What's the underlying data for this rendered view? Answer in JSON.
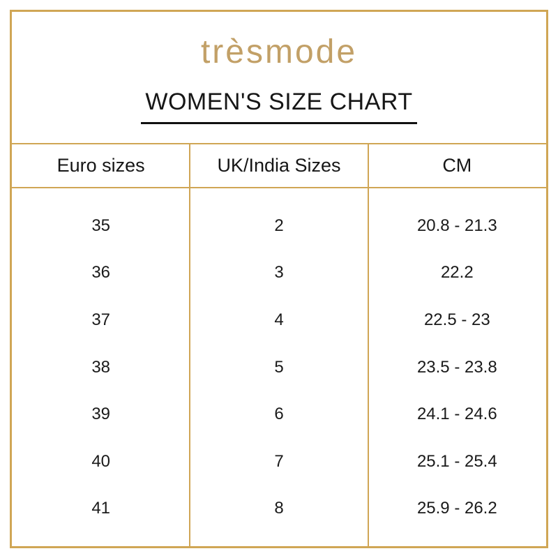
{
  "brand": {
    "logo_text": "trèsmode"
  },
  "title": "WOMEN'S SIZE CHART",
  "colors": {
    "gold_border": "#d0a655",
    "gold_logo": "#c2a067",
    "text": "#1a1a1a"
  },
  "chart_data": {
    "type": "table",
    "title": "WOMEN'S SIZE CHART",
    "columns": [
      "Euro sizes",
      "UK/India Sizes",
      "CM"
    ],
    "rows": [
      [
        "35",
        "2",
        "20.8 - 21.3"
      ],
      [
        "36",
        "3",
        "22.2"
      ],
      [
        "37",
        "4",
        "22.5 - 23"
      ],
      [
        "38",
        "5",
        "23.5 - 23.8"
      ],
      [
        "39",
        "6",
        "24.1 - 24.6"
      ],
      [
        "40",
        "7",
        "25.1 - 25.4"
      ],
      [
        "41",
        "8",
        "25.9 - 26.2"
      ]
    ]
  }
}
